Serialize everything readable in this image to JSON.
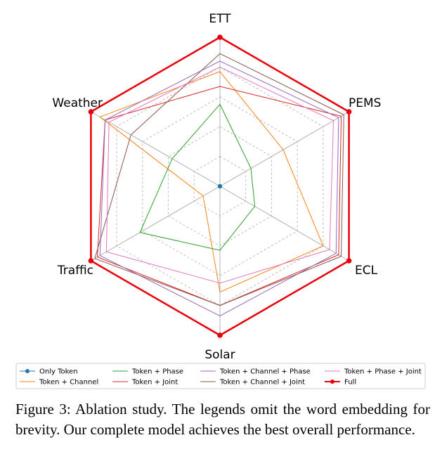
{
  "chart_data": {
    "type": "radar",
    "axes": [
      "ETT",
      "PEMS",
      "ECL",
      "Solar",
      "Traffic",
      "Weather"
    ],
    "rlim": [
      0,
      1
    ],
    "grid": true,
    "legend_position": "bottom",
    "series": [
      {
        "name": "Only Token",
        "color": "#1f77b4",
        "marker": "circle",
        "values": [
          0,
          0,
          0,
          0,
          0,
          0
        ]
      },
      {
        "name": "Token + Channel",
        "color": "#ff7f0e",
        "values": [
          0.77,
          0.49,
          0.8,
          0.71,
          0.13,
          0.93
        ]
      },
      {
        "name": "Token + Phase",
        "color": "#2ca02c",
        "values": [
          0.55,
          0.24,
          0.27,
          0.43,
          0.62,
          0.37
        ]
      },
      {
        "name": "Token + Joint",
        "color": "#d62728",
        "values": [
          0.67,
          0.94,
          0.92,
          0.8,
          0.95,
          0.89
        ]
      },
      {
        "name": "Token + Channel + Phase",
        "color": "#9467bd",
        "values": [
          0.84,
          0.92,
          0.9,
          0.87,
          0.93,
          0.89
        ]
      },
      {
        "name": "Token + Channel + Joint",
        "color": "#8c564b",
        "values": [
          0.89,
          0.96,
          0.94,
          0.8,
          0.97,
          0.69
        ]
      },
      {
        "name": "Token + Phase + Joint",
        "color": "#e377c2",
        "values": [
          0.8,
          0.88,
          0.85,
          0.65,
          0.88,
          0.86
        ]
      },
      {
        "name": "Full",
        "color": "#e8000b",
        "marker": "circle",
        "values": [
          1,
          1,
          1,
          1,
          1,
          1
        ]
      }
    ]
  },
  "caption": {
    "text": "Figure 3: Ablation study. The legends omit the word embedding for brevity. Our complete model achieves the best overall performance."
  }
}
